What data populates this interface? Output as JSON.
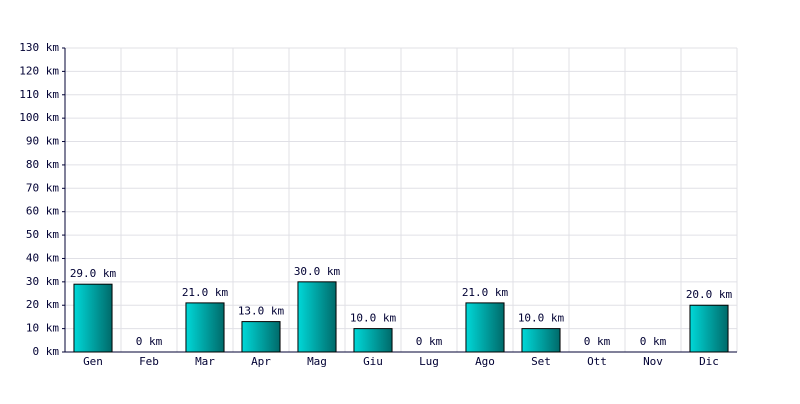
{
  "chart_data": {
    "type": "bar",
    "categories": [
      "Gen",
      "Feb",
      "Mar",
      "Apr",
      "Mag",
      "Giu",
      "Lug",
      "Ago",
      "Set",
      "Ott",
      "Nov",
      "Dic"
    ],
    "values": [
      29,
      0,
      21,
      13,
      30,
      10,
      0,
      21,
      10,
      0,
      0,
      20
    ],
    "value_labels": [
      "29.0 km",
      "0 km",
      "21.0 km",
      "13.0 km",
      "30.0 km",
      "10.0 km",
      "0 km",
      "21.0 km",
      "10.0 km",
      "0 km",
      "0 km",
      "20.0 km"
    ],
    "color": "#00d8d8",
    "ylim": [
      0,
      130
    ],
    "yticks": [
      {
        "value": 0,
        "label": "0 km"
      },
      {
        "value": 10,
        "label": "10 km"
      },
      {
        "value": 20,
        "label": "20 km"
      },
      {
        "value": 30,
        "label": "30 km"
      },
      {
        "value": 40,
        "label": "40 km"
      },
      {
        "value": 50,
        "label": "50 km"
      },
      {
        "value": 60,
        "label": "60 km"
      },
      {
        "value": 70,
        "label": "70 km"
      },
      {
        "value": 80,
        "label": "80 km"
      },
      {
        "value": 90,
        "label": "90 km"
      },
      {
        "value": 100,
        "label": "100 km"
      },
      {
        "value": 110,
        "label": "110 km"
      },
      {
        "value": 120,
        "label": "120 km"
      },
      {
        "value": 130,
        "label": "130 km"
      }
    ],
    "grid": true
  }
}
